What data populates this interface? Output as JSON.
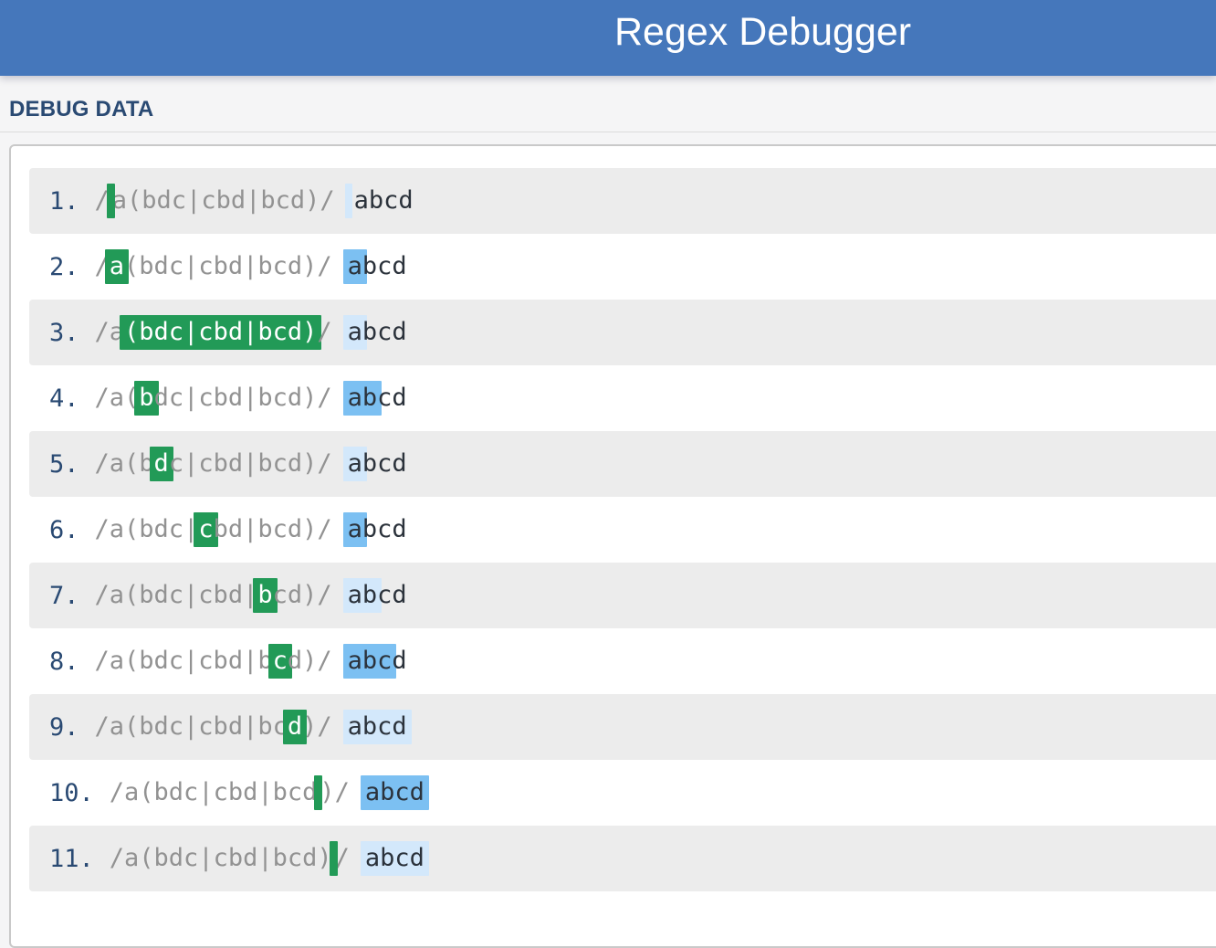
{
  "header": {
    "title": "Regex Debugger"
  },
  "section": {
    "label": "DEBUG DATA"
  },
  "colors": {
    "header_bg": "#4577bb",
    "accent_green": "#229a57",
    "match_dark_blue": "#7cc0f2",
    "match_pale_blue": "#d3e8fb",
    "row_alt_bg": "#ececec",
    "number_color": "#2a4a73",
    "regex_color": "#929292",
    "string_color": "#2b323b",
    "panel_border": "#c9c9c9"
  },
  "rows": [
    {
      "num": "1.",
      "regex": "/a(bdc|cbd|bcd)/",
      "text": "abcd",
      "regex_segments": [
        {
          "t": "/"
        },
        {
          "cursor": "green"
        },
        {
          "t": "a(bdc|cbd|bcd)/"
        }
      ],
      "text_segments": [
        {
          "cursor": "pale"
        },
        {
          "t": "abcd"
        }
      ]
    },
    {
      "num": "2.",
      "regex": "/a(bdc|cbd|bcd)/",
      "text": "abcd",
      "regex_segments": [
        {
          "t": "/"
        },
        {
          "t": "a",
          "hl": "green"
        },
        {
          "t": "(bdc|cbd|bcd)/"
        }
      ],
      "text_segments": [
        {
          "t": "a",
          "hl": "dark"
        },
        {
          "t": "bcd"
        }
      ]
    },
    {
      "num": "3.",
      "regex": "/a(bdc|cbd|bcd)/",
      "text": "abcd",
      "regex_segments": [
        {
          "t": "/a"
        },
        {
          "t": "(bdc|cbd|bcd)",
          "hl": "green"
        },
        {
          "t": "/"
        }
      ],
      "text_segments": [
        {
          "t": "a",
          "hl": "pale"
        },
        {
          "t": "bcd"
        }
      ]
    },
    {
      "num": "4.",
      "regex": "/a(bdc|cbd|bcd)/",
      "text": "abcd",
      "regex_segments": [
        {
          "t": "/a("
        },
        {
          "t": "b",
          "hl": "green"
        },
        {
          "t": "dc|cbd|bcd)/"
        }
      ],
      "text_segments": [
        {
          "t": "ab",
          "hl": "dark"
        },
        {
          "t": "cd"
        }
      ]
    },
    {
      "num": "5.",
      "regex": "/a(bdc|cbd|bcd)/",
      "text": "abcd",
      "regex_segments": [
        {
          "t": "/a(b"
        },
        {
          "t": "d",
          "hl": "green"
        },
        {
          "t": "c|cbd|bcd)/"
        }
      ],
      "text_segments": [
        {
          "t": "a",
          "hl": "pale"
        },
        {
          "t": "bcd"
        }
      ]
    },
    {
      "num": "6.",
      "regex": "/a(bdc|cbd|bcd)/",
      "text": "abcd",
      "regex_segments": [
        {
          "t": "/a(bdc|"
        },
        {
          "t": "c",
          "hl": "green"
        },
        {
          "t": "bd|bcd)/"
        }
      ],
      "text_segments": [
        {
          "t": "a",
          "hl": "dark"
        },
        {
          "t": "bcd"
        }
      ]
    },
    {
      "num": "7.",
      "regex": "/a(bdc|cbd|bcd)/",
      "text": "abcd",
      "regex_segments": [
        {
          "t": "/a(bdc|cbd|"
        },
        {
          "t": "b",
          "hl": "green"
        },
        {
          "t": "cd)/"
        }
      ],
      "text_segments": [
        {
          "t": "ab",
          "hl": "pale"
        },
        {
          "t": "cd"
        }
      ]
    },
    {
      "num": "8.",
      "regex": "/a(bdc|cbd|bcd)/",
      "text": "abcd",
      "regex_segments": [
        {
          "t": "/a(bdc|cbd|b"
        },
        {
          "t": "c",
          "hl": "green"
        },
        {
          "t": "d)/"
        }
      ],
      "text_segments": [
        {
          "t": "abc",
          "hl": "dark"
        },
        {
          "t": "d"
        }
      ]
    },
    {
      "num": "9.",
      "regex": "/a(bdc|cbd|bcd)/",
      "text": "abcd",
      "regex_segments": [
        {
          "t": "/a(bdc|cbd|bc"
        },
        {
          "t": "d",
          "hl": "green"
        },
        {
          "t": ")/"
        }
      ],
      "text_segments": [
        {
          "t": "abcd",
          "hl": "pale"
        }
      ]
    },
    {
      "num": "10.",
      "regex": "/a(bdc|cbd|bcd)/",
      "text": "abcd",
      "regex_segments": [
        {
          "t": "/a(bdc|cbd|bcd"
        },
        {
          "cursor": "green"
        },
        {
          "t": ")/"
        }
      ],
      "text_segments": [
        {
          "t": "abcd",
          "hl": "dark"
        }
      ]
    },
    {
      "num": "11.",
      "regex": "/a(bdc|cbd|bcd)/",
      "text": "abcd",
      "regex_segments": [
        {
          "t": "/a(bdc|cbd|bcd)"
        },
        {
          "cursor": "green"
        },
        {
          "t": "/"
        }
      ],
      "text_segments": [
        {
          "t": "abcd",
          "hl": "pale"
        }
      ]
    }
  ]
}
